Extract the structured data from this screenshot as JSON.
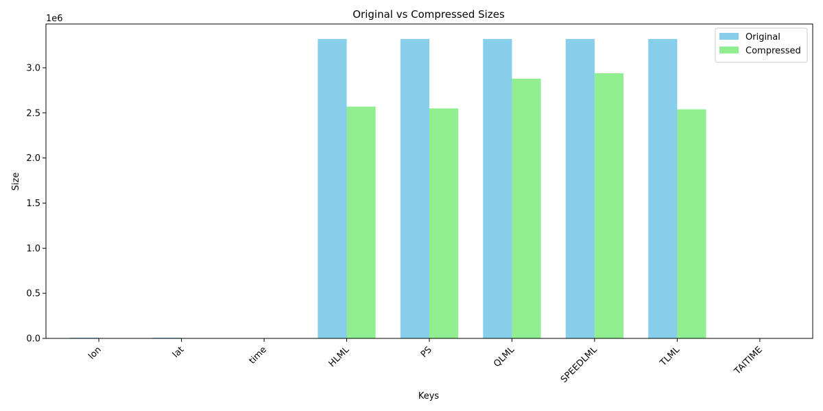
{
  "chart_data": {
    "type": "bar",
    "title": "Original vs Compressed Sizes",
    "xlabel": "Keys",
    "ylabel": "Size",
    "y_offset_label": "1e6",
    "categories": [
      "lon",
      "lat",
      "time",
      "HLML",
      "PS",
      "QLML",
      "SPEEDLML",
      "TLML",
      "TAITIME"
    ],
    "series": [
      {
        "name": "Original",
        "color": "#87ceeb",
        "values": [
          8000,
          8000,
          0,
          3320000,
          3320000,
          3320000,
          3320000,
          3320000,
          0
        ]
      },
      {
        "name": "Compressed",
        "color": "#90ee90",
        "values": [
          0,
          0,
          0,
          2570000,
          2550000,
          2880000,
          2940000,
          2540000,
          0
        ]
      }
    ],
    "ylim": [
      0,
      3486000
    ],
    "yticks": [
      0,
      500000,
      1000000,
      1500000,
      2000000,
      2500000,
      3000000
    ],
    "ytick_labels": [
      "0.0",
      "0.5",
      "1.0",
      "1.5",
      "2.0",
      "2.5",
      "3.0"
    ],
    "legend_position": "top-right",
    "grid": false
  }
}
